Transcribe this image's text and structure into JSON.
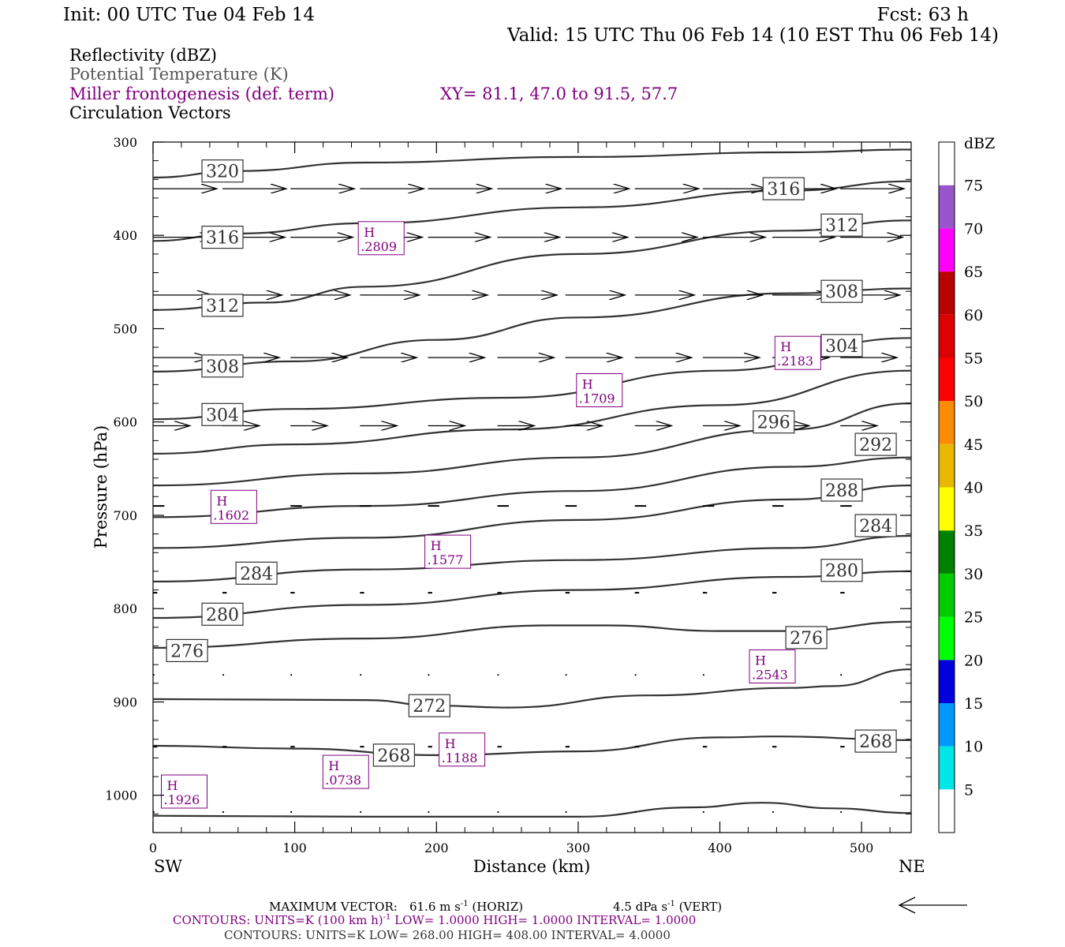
{
  "header": {
    "init": "Init: 00 UTC Tue 04 Feb 14",
    "fcst": "Fcst:   63 h",
    "valid": "Valid: 15 UTC Thu 06 Feb 14 (10 EST Thu 06 Feb 14)"
  },
  "legend": {
    "line1": "Reflectivity (dBZ)",
    "line2": "Potential Temperature (K)",
    "line3": "Miller frontogenesis (def. term)",
    "line4": "Circulation Vectors",
    "xy": "XY=  81.1, 47.0 to  91.5, 57.7"
  },
  "colors": {
    "purple": "#800080",
    "gray_text": "#555555",
    "contour": "#333333"
  },
  "chart_data": {
    "type": "cross-section",
    "xlabel": "Distance (km)",
    "ylabel": "Pressure (hPa)",
    "xlim": [
      0,
      535
    ],
    "ylim": [
      1040,
      300
    ],
    "x_ticks": [
      0,
      100,
      200,
      300,
      400,
      500
    ],
    "y_ticks": [
      300,
      400,
      500,
      600,
      700,
      800,
      900,
      1000
    ],
    "x_end_left": "SW",
    "x_end_right": "NE",
    "colorbar": {
      "unit": "dBZ",
      "ticks": [
        5,
        10,
        15,
        20,
        25,
        30,
        35,
        40,
        45,
        50,
        55,
        60,
        65,
        70,
        75
      ],
      "colors": [
        "#ffffff",
        "#00e5e5",
        "#0099ff",
        "#0000dd",
        "#00ff00",
        "#00cc00",
        "#008000",
        "#ffff00",
        "#e6b800",
        "#ff8c00",
        "#ff0000",
        "#dd0000",
        "#bb0000",
        "#ff00ff",
        "#9955cc",
        "#ffffff"
      ]
    },
    "theta_contours": [
      {
        "points": [
          [
            0,
            338
          ],
          [
            60,
            331
          ],
          [
            150,
            322
          ],
          [
            300,
            316
          ],
          [
            450,
            311
          ],
          [
            535,
            308
          ]
        ]
      },
      {
        "points": [
          [
            0,
            406
          ],
          [
            60,
            398
          ],
          [
            150,
            387
          ],
          [
            300,
            370
          ],
          [
            450,
            352
          ],
          [
            535,
            342
          ]
        ]
      },
      {
        "points": [
          [
            0,
            480
          ],
          [
            80,
            472
          ],
          [
            150,
            455
          ],
          [
            300,
            420
          ],
          [
            450,
            395
          ],
          [
            535,
            384
          ]
        ]
      },
      {
        "points": [
          [
            0,
            546
          ],
          [
            100,
            535
          ],
          [
            200,
            512
          ],
          [
            300,
            488
          ],
          [
            450,
            462
          ],
          [
            535,
            457
          ]
        ]
      },
      {
        "points": [
          [
            0,
            597
          ],
          [
            100,
            586
          ],
          [
            250,
            574
          ],
          [
            400,
            545
          ],
          [
            535,
            510
          ]
        ]
      },
      {
        "points": [
          [
            0,
            634
          ],
          [
            100,
            624
          ],
          [
            250,
            608
          ],
          [
            400,
            582
          ],
          [
            535,
            545
          ]
        ]
      },
      {
        "points": [
          [
            0,
            668
          ],
          [
            150,
            655
          ],
          [
            300,
            638
          ],
          [
            450,
            608
          ],
          [
            535,
            580
          ]
        ]
      },
      {
        "points": [
          [
            0,
            702
          ],
          [
            150,
            690
          ],
          [
            300,
            674
          ],
          [
            450,
            648
          ],
          [
            535,
            638
          ]
        ]
      },
      {
        "points": [
          [
            0,
            735
          ],
          [
            150,
            724
          ],
          [
            300,
            705
          ],
          [
            450,
            683
          ],
          [
            535,
            668
          ]
        ]
      },
      {
        "points": [
          [
            0,
            771
          ],
          [
            150,
            758
          ],
          [
            300,
            748
          ],
          [
            450,
            735
          ],
          [
            535,
            722
          ]
        ]
      },
      {
        "points": [
          [
            0,
            810
          ],
          [
            150,
            796
          ],
          [
            300,
            780
          ],
          [
            450,
            766
          ],
          [
            535,
            760
          ]
        ]
      },
      {
        "points": [
          [
            0,
            842
          ],
          [
            150,
            832
          ],
          [
            280,
            818
          ],
          [
            320,
            818
          ],
          [
            400,
            824
          ],
          [
            450,
            824
          ],
          [
            535,
            814
          ]
        ]
      },
      {
        "points": [
          [
            0,
            897
          ],
          [
            150,
            898
          ],
          [
            200,
            904
          ],
          [
            250,
            906
          ],
          [
            350,
            893
          ],
          [
            450,
            885
          ],
          [
            480,
            883
          ],
          [
            535,
            865
          ]
        ]
      },
      {
        "points": [
          [
            0,
            947
          ],
          [
            100,
            950
          ],
          [
            200,
            957
          ],
          [
            300,
            953
          ],
          [
            400,
            938
          ],
          [
            440,
            937
          ],
          [
            535,
            941
          ]
        ]
      },
      {
        "points": [
          [
            0,
            1022
          ],
          [
            150,
            1023
          ],
          [
            300,
            1023
          ],
          [
            380,
            1013
          ],
          [
            430,
            1008
          ],
          [
            480,
            1014
          ],
          [
            535,
            1019
          ]
        ]
      }
    ],
    "theta_labels": [
      {
        "text": "320",
        "x": 49,
        "p": 331
      },
      {
        "text": "316",
        "x": 445,
        "p": 350
      },
      {
        "text": "316",
        "x": 49,
        "p": 402
      },
      {
        "text": "312",
        "x": 486,
        "p": 389
      },
      {
        "text": "312",
        "x": 49,
        "p": 475
      },
      {
        "text": "308",
        "x": 486,
        "p": 460
      },
      {
        "text": "308",
        "x": 49,
        "p": 540
      },
      {
        "text": "304",
        "x": 486,
        "p": 518
      },
      {
        "text": "304",
        "x": 49,
        "p": 592
      },
      {
        "text": "296",
        "x": 438,
        "p": 600
      },
      {
        "text": "292",
        "x": 510,
        "p": 624
      },
      {
        "text": "288",
        "x": 486,
        "p": 673
      },
      {
        "text": "284",
        "x": 510,
        "p": 711
      },
      {
        "text": "284",
        "x": 73,
        "p": 762
      },
      {
        "text": "280",
        "x": 486,
        "p": 759
      },
      {
        "text": "280",
        "x": 49,
        "p": 806
      },
      {
        "text": "276",
        "x": 461,
        "p": 831
      },
      {
        "text": "276",
        "x": 24,
        "p": 845
      },
      {
        "text": "272",
        "x": 195,
        "p": 904
      },
      {
        "text": "268",
        "x": 170,
        "p": 957
      },
      {
        "text": "268",
        "x": 510,
        "p": 942
      }
    ],
    "frontogenesis_highs": [
      {
        "label": "H",
        "value": ".2809",
        "x": 161,
        "p": 403
      },
      {
        "label": "H",
        "value": ".2183",
        "x": 455,
        "p": 526
      },
      {
        "label": "H",
        "value": ".1709",
        "x": 315,
        "p": 566
      },
      {
        "label": "H",
        "value": ".1602",
        "x": 57,
        "p": 691
      },
      {
        "label": "H",
        "value": ".1577",
        "x": 208,
        "p": 739
      },
      {
        "label": "H",
        "value": ".2543",
        "x": 437,
        "p": 862
      },
      {
        "label": "H",
        "value": ".1188",
        "x": 218,
        "p": 951
      },
      {
        "label": "H",
        "value": ".0738",
        "x": 136,
        "p": 975
      },
      {
        "label": "H",
        "value": ".1926",
        "x": 22,
        "p": 996
      }
    ],
    "vector_rows": [
      {
        "p": 350,
        "len": 45
      },
      {
        "p": 402,
        "len": 44
      },
      {
        "p": 464,
        "len": 42
      },
      {
        "p": 531,
        "len": 40
      },
      {
        "p": 604,
        "len": 26
      },
      {
        "p": 690,
        "len": 8
      },
      {
        "p": 783,
        "len": 3
      },
      {
        "p": 871,
        "len": 1
      },
      {
        "p": 948,
        "len": 3
      },
      {
        "p": 1018,
        "len": 1
      }
    ],
    "vector_xs": [
      0,
      49,
      97,
      146,
      194,
      243,
      291,
      340,
      388,
      437,
      485,
      534
    ]
  },
  "footer": {
    "max_vector_label": "MAXIMUM VECTOR:",
    "max_vector_horiz": "61.6 m s",
    "max_vector_horiz_unit": " (HORIZ)",
    "max_vector_vert": "4.5 dPa s",
    "max_vector_vert_unit": " (VERT)",
    "sup_minus1": "-1",
    "contours1_units": "CONTOURS:  UNITS=K (100 km h)",
    "contours1_rest": "  LOW=   1.0000        HIGH=   1.0000        INTERVAL=    1.0000",
    "contours2": "CONTOURS:  UNITS=K  LOW=   268.00        HIGH=   408.00        INTERVAL=    4.0000"
  }
}
